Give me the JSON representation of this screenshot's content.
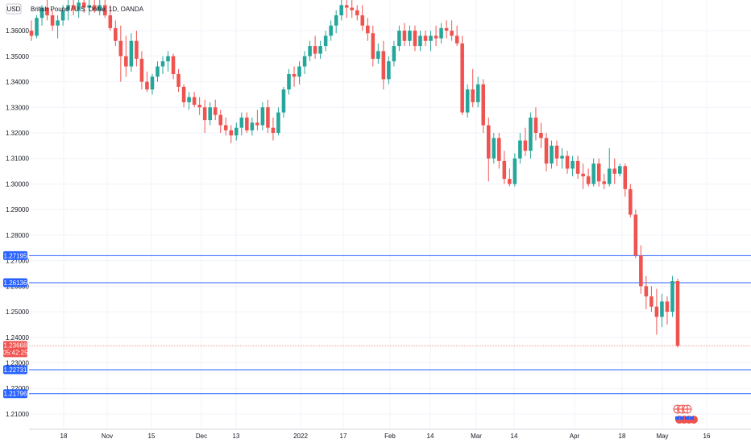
{
  "header": {
    "currency_badge": "USD",
    "title": "British Pound / U.S. Dollar, 1D, OANDA"
  },
  "chart_data": {
    "type": "candlestick",
    "ylim": [
      1.204,
      1.372
    ],
    "y_ticks": [
      "1.21000",
      "1.22000",
      "1.23000",
      "1.24000",
      "1.25000",
      "1.26000",
      "1.27000",
      "1.28000",
      "1.29000",
      "1.30000",
      "1.31000",
      "1.32000",
      "1.33000",
      "1.34000",
      "1.35000",
      "1.36000"
    ],
    "x_labels": [
      "18",
      "Nov",
      "15",
      "Dec",
      "13",
      "2022",
      "17",
      "Feb",
      "14",
      "Mar",
      "14",
      "Apr",
      "18",
      "May",
      "16"
    ],
    "colors": {
      "up": "#26a69a",
      "down": "#ef5350",
      "hline": "#2962ff",
      "current": "#ef5350"
    },
    "candles": [
      [
        1.36,
        1.364,
        1.356,
        1.358
      ],
      [
        1.358,
        1.366,
        1.357,
        1.365
      ],
      [
        1.365,
        1.37,
        1.362,
        1.369
      ],
      [
        1.369,
        1.372,
        1.364,
        1.366
      ],
      [
        1.366,
        1.368,
        1.36,
        1.362
      ],
      [
        1.362,
        1.366,
        1.357,
        1.364
      ],
      [
        1.364,
        1.37,
        1.362,
        1.368
      ],
      [
        1.368,
        1.372,
        1.364,
        1.37
      ],
      [
        1.37,
        1.372,
        1.366,
        1.368
      ],
      [
        1.368,
        1.372,
        1.365,
        1.371
      ],
      [
        1.371,
        1.372,
        1.367,
        1.369
      ],
      [
        1.369,
        1.372,
        1.366,
        1.37
      ],
      [
        1.37,
        1.372,
        1.367,
        1.368
      ],
      [
        1.368,
        1.372,
        1.366,
        1.37
      ],
      [
        1.37,
        1.372,
        1.365,
        1.366
      ],
      [
        1.366,
        1.37,
        1.36,
        1.361
      ],
      [
        1.361,
        1.364,
        1.354,
        1.356
      ],
      [
        1.356,
        1.362,
        1.34,
        1.35
      ],
      [
        1.35,
        1.358,
        1.342,
        1.346
      ],
      [
        1.346,
        1.359,
        1.344,
        1.356
      ],
      [
        1.356,
        1.36,
        1.346,
        1.349
      ],
      [
        1.349,
        1.352,
        1.337,
        1.34
      ],
      [
        1.34,
        1.344,
        1.336,
        1.337
      ],
      [
        1.337,
        1.343,
        1.335,
        1.342
      ],
      [
        1.342,
        1.348,
        1.34,
        1.346
      ],
      [
        1.346,
        1.35,
        1.343,
        1.348
      ],
      [
        1.348,
        1.352,
        1.344,
        1.35
      ],
      [
        1.35,
        1.351,
        1.341,
        1.343
      ],
      [
        1.343,
        1.345,
        1.336,
        1.338
      ],
      [
        1.338,
        1.339,
        1.33,
        1.332
      ],
      [
        1.332,
        1.336,
        1.329,
        1.334
      ],
      [
        1.334,
        1.336,
        1.33,
        1.331
      ],
      [
        1.331,
        1.334,
        1.327,
        1.33
      ],
      [
        1.33,
        1.333,
        1.32,
        1.325
      ],
      [
        1.325,
        1.332,
        1.323,
        1.33
      ],
      [
        1.33,
        1.333,
        1.325,
        1.327
      ],
      [
        1.327,
        1.329,
        1.32,
        1.323
      ],
      [
        1.323,
        1.326,
        1.319,
        1.321
      ],
      [
        1.321,
        1.323,
        1.316,
        1.319
      ],
      [
        1.319,
        1.324,
        1.317,
        1.322
      ],
      [
        1.322,
        1.328,
        1.319,
        1.326
      ],
      [
        1.326,
        1.328,
        1.32,
        1.321
      ],
      [
        1.321,
        1.326,
        1.319,
        1.324
      ],
      [
        1.324,
        1.329,
        1.321,
        1.323
      ],
      [
        1.323,
        1.332,
        1.321,
        1.33
      ],
      [
        1.33,
        1.333,
        1.32,
        1.322
      ],
      [
        1.322,
        1.326,
        1.317,
        1.32
      ],
      [
        1.32,
        1.33,
        1.319,
        1.328
      ],
      [
        1.328,
        1.338,
        1.326,
        1.337
      ],
      [
        1.337,
        1.345,
        1.335,
        1.343
      ],
      [
        1.343,
        1.346,
        1.338,
        1.342
      ],
      [
        1.342,
        1.348,
        1.339,
        1.346
      ],
      [
        1.346,
        1.352,
        1.343,
        1.35
      ],
      [
        1.35,
        1.356,
        1.348,
        1.354
      ],
      [
        1.354,
        1.358,
        1.349,
        1.351
      ],
      [
        1.351,
        1.356,
        1.349,
        1.354
      ],
      [
        1.354,
        1.36,
        1.352,
        1.358
      ],
      [
        1.358,
        1.364,
        1.356,
        1.362
      ],
      [
        1.362,
        1.368,
        1.359,
        1.366
      ],
      [
        1.366,
        1.372,
        1.364,
        1.37
      ],
      [
        1.37,
        1.372,
        1.365,
        1.369
      ],
      [
        1.369,
        1.372,
        1.365,
        1.368
      ],
      [
        1.368,
        1.37,
        1.364,
        1.366
      ],
      [
        1.366,
        1.37,
        1.36,
        1.362
      ],
      [
        1.362,
        1.365,
        1.356,
        1.359
      ],
      [
        1.359,
        1.362,
        1.346,
        1.349
      ],
      [
        1.349,
        1.355,
        1.347,
        1.352
      ],
      [
        1.352,
        1.356,
        1.337,
        1.341
      ],
      [
        1.341,
        1.35,
        1.339,
        1.348
      ],
      [
        1.348,
        1.356,
        1.346,
        1.354
      ],
      [
        1.354,
        1.362,
        1.352,
        1.36
      ],
      [
        1.36,
        1.363,
        1.354,
        1.356
      ],
      [
        1.356,
        1.362,
        1.354,
        1.36
      ],
      [
        1.36,
        1.362,
        1.352,
        1.354
      ],
      [
        1.354,
        1.36,
        1.352,
        1.358
      ],
      [
        1.358,
        1.36,
        1.354,
        1.356
      ],
      [
        1.356,
        1.36,
        1.352,
        1.358
      ],
      [
        1.358,
        1.362,
        1.354,
        1.357
      ],
      [
        1.357,
        1.363,
        1.355,
        1.361
      ],
      [
        1.361,
        1.364,
        1.357,
        1.36
      ],
      [
        1.36,
        1.364,
        1.356,
        1.358
      ],
      [
        1.358,
        1.362,
        1.354,
        1.355
      ],
      [
        1.355,
        1.358,
        1.327,
        1.328
      ],
      [
        1.328,
        1.339,
        1.326,
        1.337
      ],
      [
        1.337,
        1.345,
        1.33,
        1.332
      ],
      [
        1.332,
        1.342,
        1.33,
        1.339
      ],
      [
        1.339,
        1.341,
        1.32,
        1.323
      ],
      [
        1.323,
        1.326,
        1.301,
        1.31
      ],
      [
        1.31,
        1.32,
        1.308,
        1.318
      ],
      [
        1.318,
        1.32,
        1.306,
        1.309
      ],
      [
        1.309,
        1.313,
        1.3,
        1.302
      ],
      [
        1.302,
        1.306,
        1.299,
        1.3
      ],
      [
        1.3,
        1.312,
        1.299,
        1.31
      ],
      [
        1.31,
        1.32,
        1.308,
        1.317
      ],
      [
        1.317,
        1.322,
        1.311,
        1.313
      ],
      [
        1.313,
        1.328,
        1.31,
        1.326
      ],
      [
        1.326,
        1.33,
        1.317,
        1.32
      ],
      [
        1.32,
        1.324,
        1.314,
        1.318
      ],
      [
        1.318,
        1.32,
        1.305,
        1.308
      ],
      [
        1.308,
        1.317,
        1.306,
        1.315
      ],
      [
        1.315,
        1.317,
        1.307,
        1.31
      ],
      [
        1.31,
        1.314,
        1.306,
        1.311
      ],
      [
        1.311,
        1.313,
        1.304,
        1.306
      ],
      [
        1.306,
        1.311,
        1.303,
        1.309
      ],
      [
        1.309,
        1.311,
        1.302,
        1.304
      ],
      [
        1.304,
        1.308,
        1.298,
        1.303
      ],
      [
        1.303,
        1.306,
        1.299,
        1.3
      ],
      [
        1.3,
        1.31,
        1.299,
        1.308
      ],
      [
        1.308,
        1.31,
        1.299,
        1.301
      ],
      [
        1.301,
        1.304,
        1.298,
        1.3
      ],
      [
        1.3,
        1.314,
        1.299,
        1.306
      ],
      [
        1.306,
        1.31,
        1.3,
        1.304
      ],
      [
        1.304,
        1.308,
        1.303,
        1.307
      ],
      [
        1.307,
        1.308,
        1.295,
        1.298
      ],
      [
        1.298,
        1.3,
        1.287,
        1.288
      ],
      [
        1.288,
        1.29,
        1.271,
        1.272
      ],
      [
        1.272,
        1.276,
        1.257,
        1.26
      ],
      [
        1.26,
        1.264,
        1.251,
        1.256
      ],
      [
        1.256,
        1.26,
        1.25,
        1.252
      ],
      [
        1.252,
        1.259,
        1.241,
        1.248
      ],
      [
        1.248,
        1.257,
        1.244,
        1.254
      ],
      [
        1.254,
        1.256,
        1.245,
        1.25
      ],
      [
        1.25,
        1.264,
        1.248,
        1.262
      ],
      [
        1.262,
        1.263,
        1.236,
        1.2367
      ]
    ],
    "horizontal_lines": [
      1.27195,
      1.26136,
      1.22731,
      1.21796
    ],
    "current_price": "1.23668",
    "countdown": "05:42:25",
    "price_labels": {
      "line1": "1.27195",
      "line2": "1.26136",
      "line3": "1.22731",
      "line4": "1.21796"
    }
  }
}
